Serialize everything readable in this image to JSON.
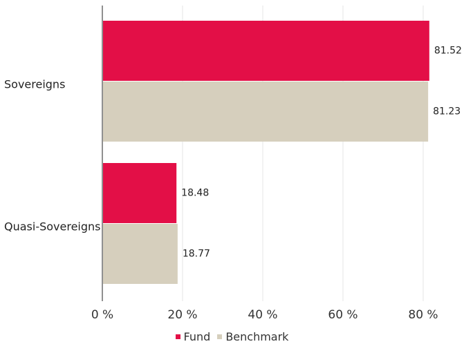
{
  "chart_data": {
    "type": "bar",
    "orientation": "horizontal",
    "categories": [
      "Sovereigns",
      "Quasi-Sovereigns"
    ],
    "series": [
      {
        "name": "Fund",
        "values": [
          81.52,
          18.48
        ],
        "labels": [
          "81.52",
          "18.48"
        ],
        "color": "#e30f47"
      },
      {
        "name": "Benchmark",
        "values": [
          81.23,
          18.77
        ],
        "labels": [
          "81.23",
          "18.77"
        ],
        "color": "#d6cfbd"
      }
    ],
    "xlim": [
      0,
      90
    ],
    "xticks": [
      0,
      20,
      40,
      60,
      80
    ],
    "xtick_labels": [
      "0 %",
      "20 %",
      "40 %",
      "60 %",
      "80 %"
    ],
    "grid": true,
    "legend_position": "bottom-center",
    "title": "",
    "xlabel": "",
    "ylabel": ""
  }
}
